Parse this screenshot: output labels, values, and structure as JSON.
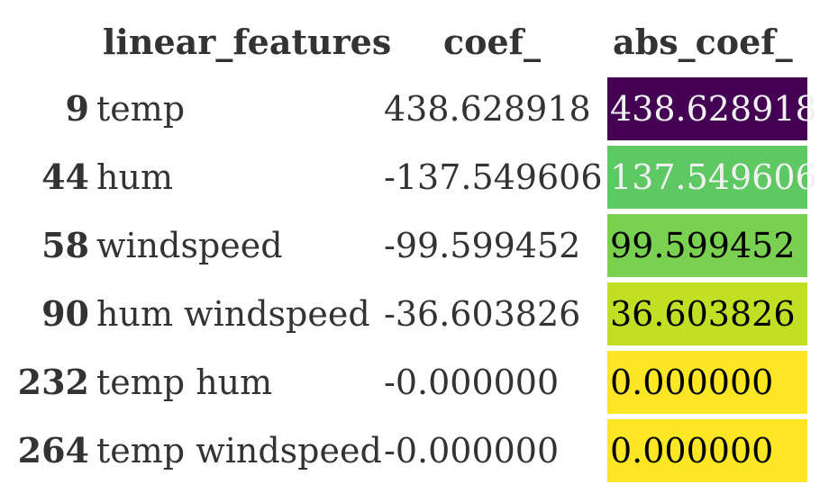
{
  "table": {
    "columns": [
      "linear_features",
      "coef_",
      "abs_coef_"
    ],
    "rows": [
      {
        "index": "9",
        "feature": "temp",
        "coef": "438.628918",
        "abs_coef": "438.628918",
        "abs_value": 438.628918,
        "bg": "#440154",
        "fg": "#f1f1f1"
      },
      {
        "index": "44",
        "feature": "hum",
        "coef": "-137.549606",
        "abs_coef": "137.549606",
        "abs_value": 137.549606,
        "bg": "#5ec962",
        "fg": "#f1f1f1"
      },
      {
        "index": "58",
        "feature": "windspeed",
        "coef": "-99.599452",
        "abs_coef": "99.599452",
        "abs_value": 99.599452,
        "bg": "#7ad151",
        "fg": "#000000"
      },
      {
        "index": "90",
        "feature": "hum windspeed",
        "coef": "-36.603826",
        "abs_coef": "36.603826",
        "abs_value": 36.603826,
        "bg": "#c2df23",
        "fg": "#000000"
      },
      {
        "index": "232",
        "feature": "temp hum",
        "coef": "-0.000000",
        "abs_coef": "0.000000",
        "abs_value": 0.0,
        "bg": "#fde725",
        "fg": "#000000"
      },
      {
        "index": "264",
        "feature": "temp windspeed",
        "coef": "-0.000000",
        "abs_coef": "0.000000",
        "abs_value": 0.0,
        "bg": "#fde725",
        "fg": "#000000"
      }
    ]
  }
}
